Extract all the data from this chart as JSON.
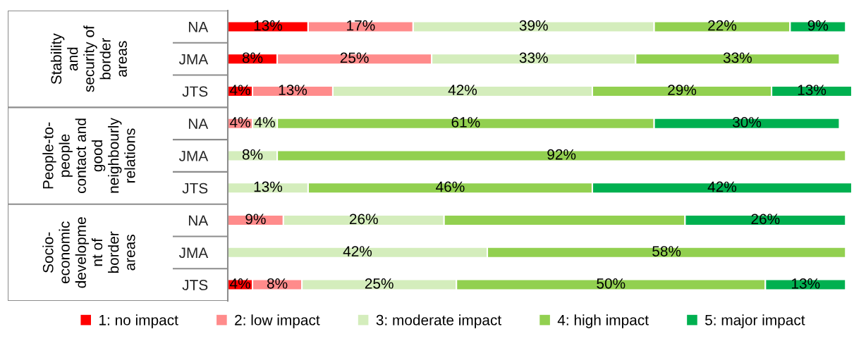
{
  "chart_data": {
    "type": "bar",
    "orientation": "horizontal",
    "stacked": true,
    "tick_labels": "y",
    "legend": "bottom",
    "categories": [
      "NA",
      "JMA",
      "JTS",
      "NA",
      "JMA",
      "JTS",
      "NA",
      "JMA",
      "JTS"
    ],
    "annotations": [
      "Stability\nand\nsecurity of\nborder\nareas",
      "People-to-\npeople\ncontact and\ngood\nneighbourly\nrelations",
      "Socio-\neconomic\ndevelopme\nnt of\nborder\nareas"
    ],
    "series": [
      {
        "name": "1: no impact",
        "color": "#ff0000",
        "values": [
          13,
          8,
          4,
          null,
          null,
          null,
          null,
          null,
          4
        ],
        "value_labels": [
          "13%",
          "8%",
          "4%",
          null,
          null,
          null,
          null,
          null,
          "4%"
        ]
      },
      {
        "name": "2: low impact",
        "color": "#ff8b8b",
        "values": [
          17,
          25,
          13,
          4,
          null,
          null,
          9,
          null,
          8
        ],
        "value_labels": [
          "17%",
          "25%",
          "13%",
          "4%",
          null,
          null,
          "9%",
          null,
          "8%"
        ]
      },
      {
        "name": "3: moderate impact",
        "color": "#d4edbc",
        "values": [
          39,
          33,
          42,
          4,
          8,
          13,
          26,
          42,
          25
        ],
        "value_labels": [
          "39%",
          "33%",
          "42%",
          "4%",
          "8%",
          "13%",
          "26%",
          "42%",
          "25%"
        ]
      },
      {
        "name": "4: high impact",
        "color": "#92d050",
        "values": [
          22,
          33,
          29,
          61,
          92,
          46,
          39,
          58,
          50
        ],
        "value_labels": [
          "22%",
          "33%",
          "29%",
          "61%",
          "92%",
          "46%",
          null,
          "58%",
          "50%"
        ]
      },
      {
        "name": "5: major impact",
        "color": "#00b050",
        "values": [
          9,
          null,
          13,
          30,
          null,
          42,
          26,
          null,
          13
        ],
        "value_labels": [
          "9%",
          null,
          "13%",
          "30%",
          null,
          "42%",
          "26%",
          null,
          "13%"
        ]
      }
    ]
  }
}
